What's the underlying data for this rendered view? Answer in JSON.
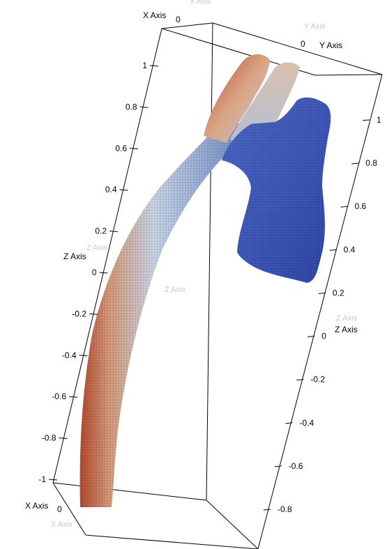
{
  "axes": {
    "x_axis_label": "X Axis",
    "y_axis_label": "Y Axis",
    "z_axis_label": "Z Axis",
    "x_axis_ghost_label": "X Axis",
    "y_axis_ghost_label": "Y Axis",
    "z_axis_ghost_label": "Z Axis",
    "x_zero": "0",
    "y_zero": "0",
    "left_z_ticks": [
      "1",
      "0.8",
      "0.6",
      "0.4",
      "0.2",
      "0",
      "-0.2",
      "-0.4",
      "-0.6",
      "-0.8",
      "-1"
    ],
    "right_z_ticks": [
      "1",
      "0.8",
      "0.6",
      "0.4",
      "0.2",
      "0",
      "-0.2",
      "-0.4",
      "-0.6",
      "-0.8"
    ]
  },
  "colors": {
    "background": "#ffffff",
    "scalar_low": "#3a55b8",
    "scalar_mid": "#c6d3e6",
    "scalar_high": "#b8432a"
  },
  "render": {
    "representation": "voxel-surface",
    "colormap": "cool-to-warm"
  }
}
